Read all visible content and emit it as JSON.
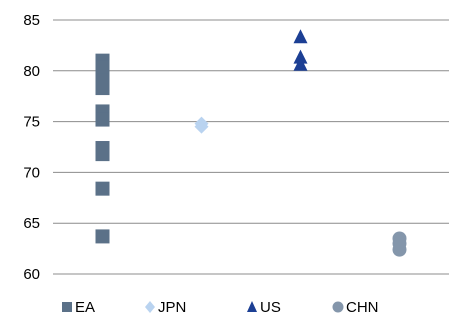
{
  "chart_data": {
    "type": "scatter",
    "title": "",
    "xlabel": "",
    "ylabel": "",
    "ylim": [
      60,
      85
    ],
    "y_ticks": [
      60,
      65,
      70,
      75,
      80,
      85
    ],
    "y_tick_labels": [
      "60",
      "65",
      "70",
      "75",
      "80",
      "85"
    ],
    "grid": true,
    "legend": "bottom",
    "categories": [
      "EA",
      "JPN",
      "US",
      "CHN"
    ],
    "series": [
      {
        "name": "EA",
        "marker": "square",
        "color": "#5b7188",
        "values": [
          81.0,
          80.3,
          79.6,
          79.0,
          78.3,
          76.0,
          75.2,
          72.4,
          71.8,
          68.4,
          63.7
        ]
      },
      {
        "name": "JPN",
        "marker": "diamond",
        "color": "#b9d3f0",
        "values": [
          74.8,
          74.5
        ]
      },
      {
        "name": "US",
        "marker": "triangle",
        "color": "#1c3f94",
        "values": [
          83.3,
          81.3,
          80.6
        ]
      },
      {
        "name": "CHN",
        "marker": "circle",
        "color": "#8496ab",
        "values": [
          63.5,
          63.0,
          62.4
        ]
      }
    ]
  }
}
